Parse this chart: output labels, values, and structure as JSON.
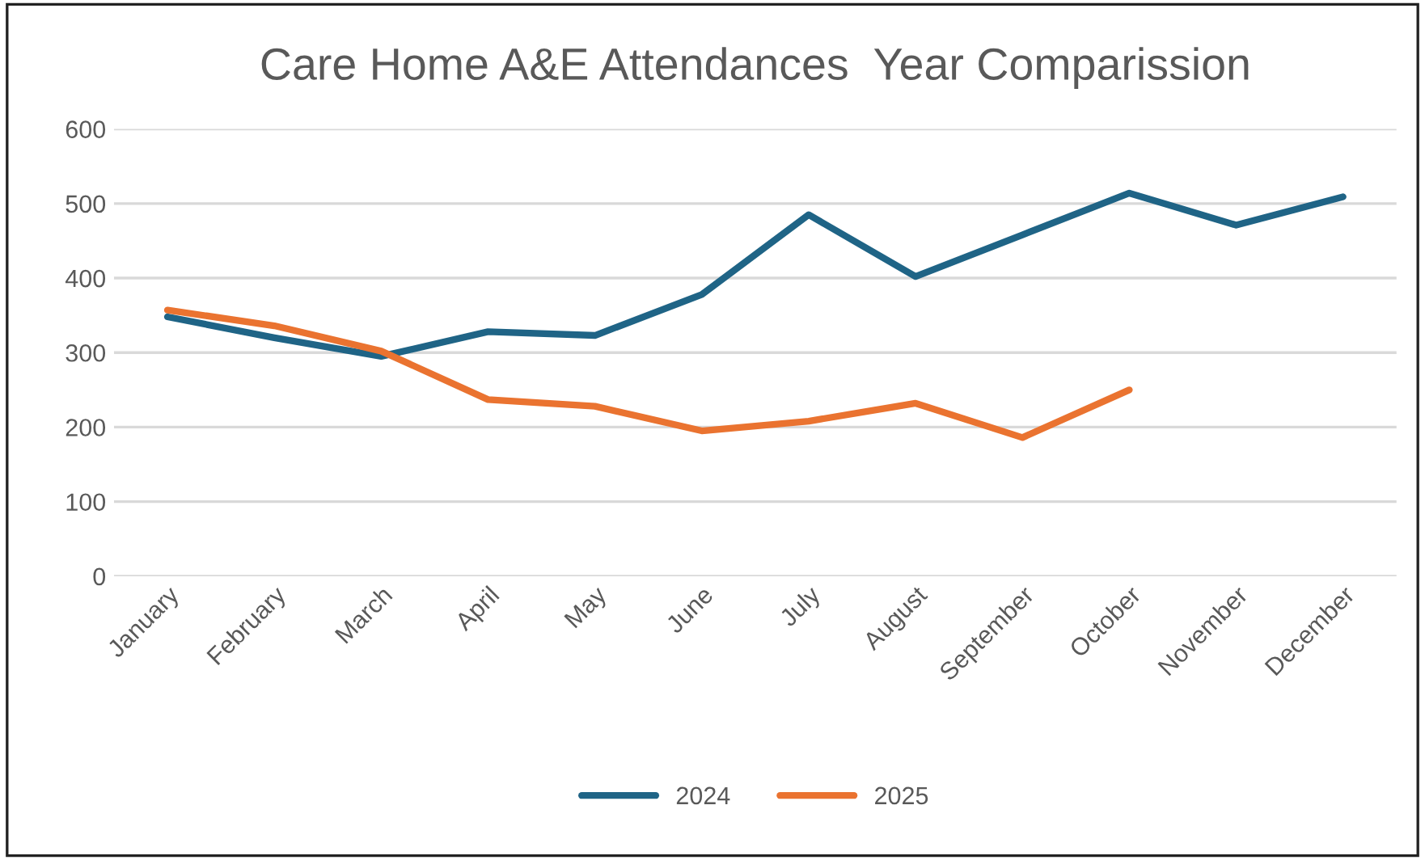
{
  "chart_data": {
    "type": "line",
    "title": "Care Home A&E Attendances  Year Comparission",
    "categories": [
      "January",
      "February",
      "March",
      "April",
      "May",
      "June",
      "July",
      "August",
      "September",
      "October",
      "November",
      "December"
    ],
    "series": [
      {
        "name": "2024",
        "color": "#1f6486",
        "values": [
          348,
          320,
          295,
          328,
          323,
          378,
          485,
          402,
          458,
          514,
          471,
          509
        ]
      },
      {
        "name": "2025",
        "color": "#ea7330",
        "values": [
          357,
          336,
          302,
          237,
          228,
          195,
          208,
          232,
          186,
          250,
          null,
          null
        ]
      }
    ],
    "ylim": [
      0,
      600
    ],
    "yticks": [
      0,
      100,
      200,
      300,
      400,
      500,
      600
    ],
    "grid": "y",
    "legend": "bottom",
    "marker": "none",
    "line_style": "solid"
  }
}
